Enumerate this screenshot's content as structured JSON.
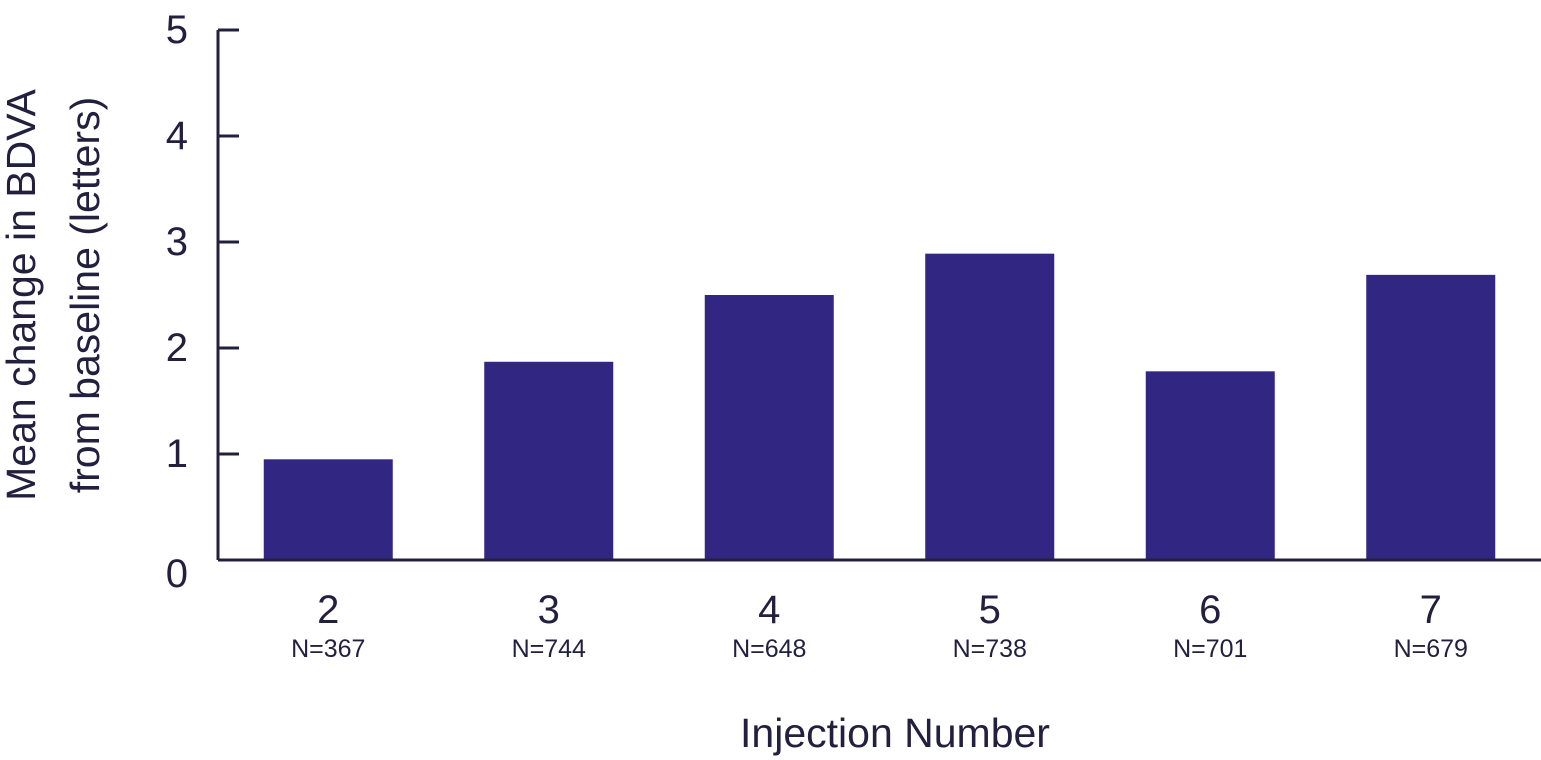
{
  "chart_data": {
    "type": "bar",
    "categories": [
      "2",
      "3",
      "4",
      "5",
      "6",
      "7"
    ],
    "category_notes": [
      "N=367",
      "N=744",
      "N=648",
      "N=738",
      "N=701",
      "N=679"
    ],
    "values": [
      0.95,
      1.87,
      2.5,
      2.89,
      1.78,
      2.69
    ],
    "xlabel": "Injection Number",
    "ylabel_lines": [
      "Mean change in BDVA",
      "from baseline (letters)"
    ],
    "ylim": [
      0,
      5
    ],
    "yticks": [
      "0",
      "1",
      "2",
      "3",
      "4",
      "5"
    ],
    "grid": false,
    "bar_color": "#312783",
    "axis_color": "#23203f"
  }
}
